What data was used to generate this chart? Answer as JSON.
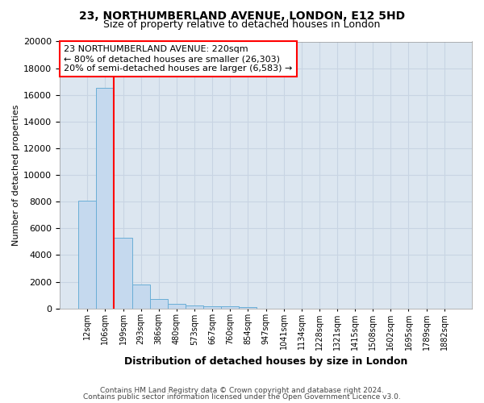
{
  "title": "23, NORTHUMBERLAND AVENUE, LONDON, E12 5HD",
  "subtitle": "Size of property relative to detached houses in London",
  "xlabel": "Distribution of detached houses by size in London",
  "ylabel": "Number of detached properties",
  "footnote1": "Contains HM Land Registry data © Crown copyright and database right 2024.",
  "footnote2": "Contains public sector information licensed under the Open Government Licence v3.0.",
  "annotation_line1": "23 NORTHUMBERLAND AVENUE: 220sqm",
  "annotation_line2": "← 80% of detached houses are smaller (26,303)",
  "annotation_line3": "20% of semi-detached houses are larger (6,583) →",
  "bar_labels": [
    "12sqm",
    "106sqm",
    "199sqm",
    "293sqm",
    "386sqm",
    "480sqm",
    "573sqm",
    "667sqm",
    "760sqm",
    "854sqm",
    "947sqm",
    "1041sqm",
    "1134sqm",
    "1228sqm",
    "1321sqm",
    "1415sqm",
    "1508sqm",
    "1602sqm",
    "1695sqm",
    "1789sqm",
    "1882sqm"
  ],
  "bar_values": [
    8050,
    16500,
    5300,
    1800,
    700,
    310,
    220,
    170,
    150,
    115,
    0,
    0,
    0,
    0,
    0,
    0,
    0,
    0,
    0,
    0,
    0
  ],
  "bar_color": "#c5d9ee",
  "bar_edge_color": "#6aaed6",
  "grid_color": "#c8d4e3",
  "background_color": "#dce6f0",
  "red_line_index": 2,
  "ylim": [
    0,
    20000
  ],
  "yticks": [
    0,
    2000,
    4000,
    6000,
    8000,
    10000,
    12000,
    14000,
    16000,
    18000,
    20000
  ]
}
